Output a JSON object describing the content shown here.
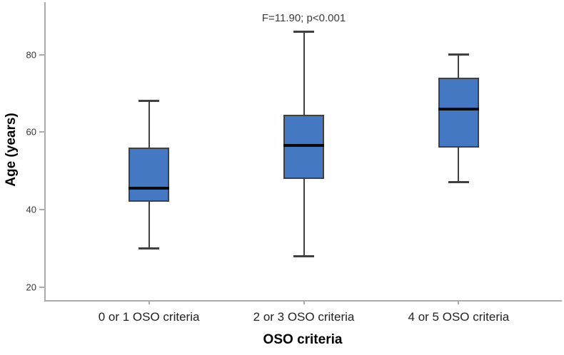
{
  "chart_data": {
    "type": "boxplot",
    "title": "",
    "xlabel": "OSO criteria",
    "ylabel": "Age (years)",
    "categories": [
      "0 or 1 OSO criteria",
      "2 or 3 OSO criteria",
      "4 or 5 OSO criteria"
    ],
    "y_ticks": [
      20,
      40,
      60,
      80
    ],
    "ylim": [
      16.6,
      93.6
    ],
    "grid": false,
    "legend": false,
    "annotation": {
      "text": "F=11.90; p<0.001",
      "over_category": 1
    },
    "series": [
      {
        "label": "0 or 1 OSO criteria",
        "whisker_low": 30,
        "q1": 42,
        "median": 45.5,
        "q3": 56,
        "whisker_high": 68
      },
      {
        "label": "2 or 3 OSO criteria",
        "whisker_low": 28,
        "q1": 48,
        "median": 56.5,
        "q3": 64.5,
        "whisker_high": 86
      },
      {
        "label": "4 or 5 OSO criteria",
        "whisker_low": 47,
        "q1": 56,
        "median": 66,
        "q3": 74,
        "whisker_high": 80
      }
    ],
    "colors": {
      "box_fill": "#4478C2",
      "box_border": "#404040",
      "median_line": "#0a0a0a",
      "whisker": "#404040",
      "axis_line": "#ababab",
      "tick_label_text": "#333333",
      "annotation_text": "#3a3a3a"
    }
  }
}
